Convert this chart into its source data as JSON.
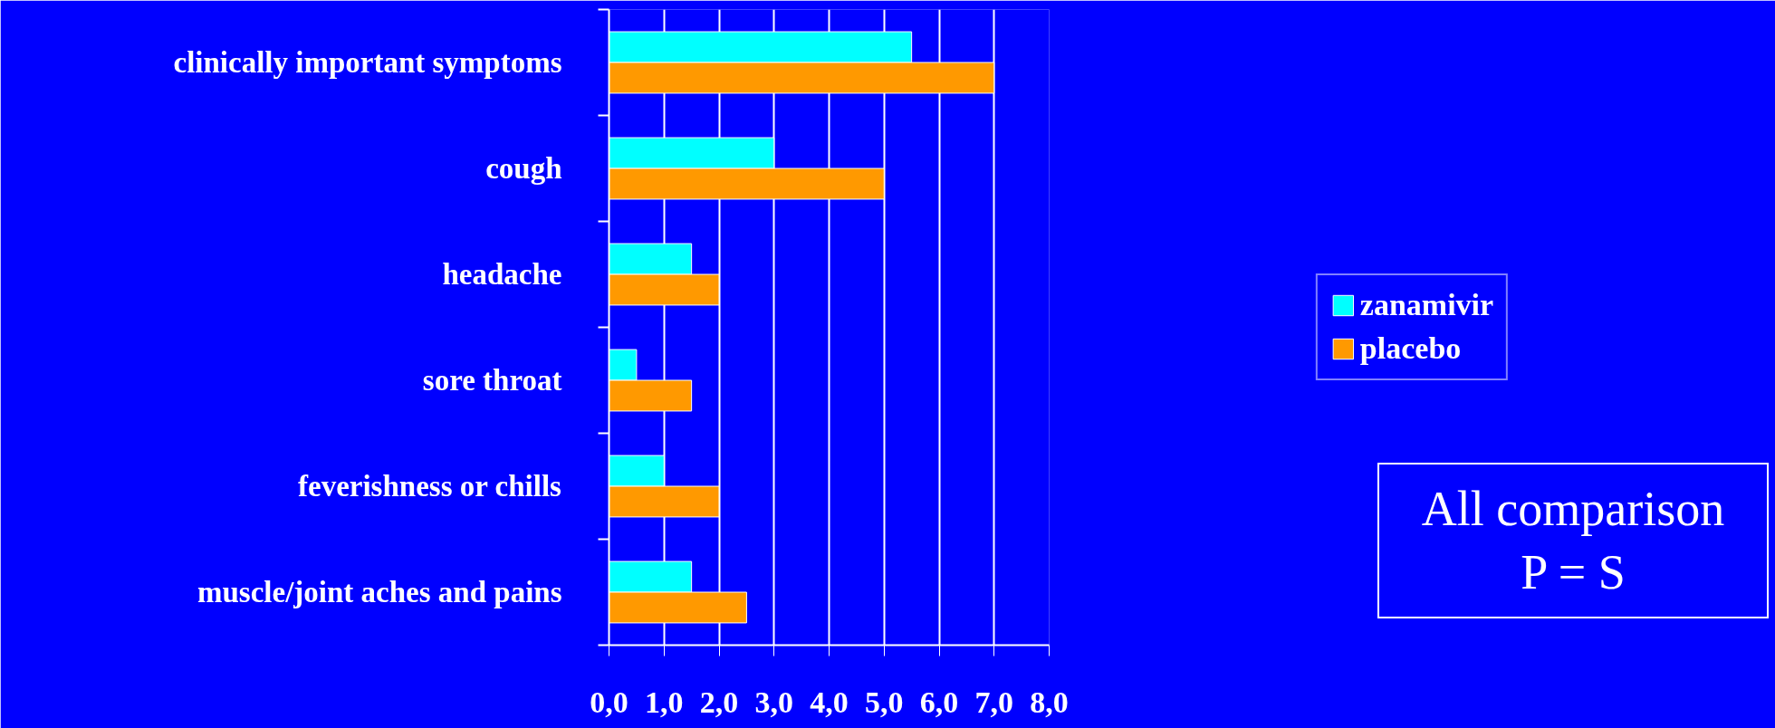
{
  "chart_data": {
    "type": "bar",
    "orientation": "horizontal",
    "categories": [
      "clinically important symptoms",
      "cough",
      "headache",
      "sore throat",
      "feverishness or chills",
      "muscle/joint aches and pains"
    ],
    "series": [
      {
        "name": "zanamivir",
        "color": "#00ffff",
        "values": [
          5.5,
          3,
          1.5,
          0.5,
          1,
          1.5
        ]
      },
      {
        "name": "placebo",
        "color": "#ff9900",
        "values": [
          7,
          5,
          2,
          1.5,
          2,
          2.5
        ]
      }
    ],
    "xlim": [
      0,
      8
    ],
    "xticks": [
      {
        "value": 0,
        "label": "0,0"
      },
      {
        "value": 1,
        "label": "1,0"
      },
      {
        "value": 2,
        "label": "2,0"
      },
      {
        "value": 3,
        "label": "3,0"
      },
      {
        "value": 4,
        "label": "4,0"
      },
      {
        "value": 5,
        "label": "5,0"
      },
      {
        "value": 6,
        "label": "6,0"
      },
      {
        "value": 7,
        "label": "7,0"
      },
      {
        "value": 8,
        "label": "8,0"
      }
    ],
    "grid": "x",
    "legend": "right",
    "annotations": [
      "All comparison\nP = S"
    ]
  }
}
